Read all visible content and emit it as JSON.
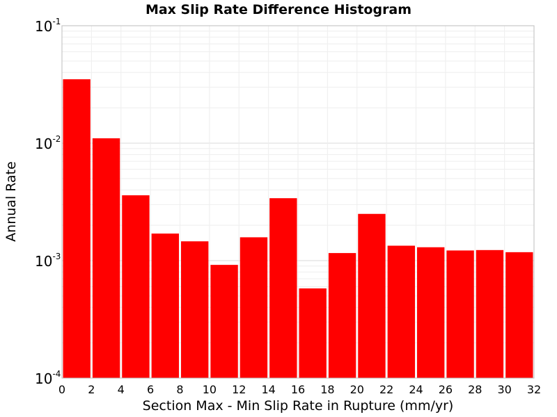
{
  "chart_data": {
    "type": "bar",
    "title": "Max Slip Rate Difference Histogram",
    "xlabel": "Section Max - Min Slip Rate in Rupture (mm/yr)",
    "ylabel": "Annual Rate",
    "xlim": [
      0,
      32
    ],
    "ylim": [
      0.0001,
      0.1
    ],
    "yscale": "log",
    "grid": true,
    "bar_color": "#ff0000",
    "bin_width": 2,
    "x_ticks": [
      "0",
      "2",
      "4",
      "6",
      "8",
      "10",
      "12",
      "14",
      "16",
      "18",
      "20",
      "22",
      "24",
      "26",
      "28",
      "30",
      "32"
    ],
    "y_ticks": [
      {
        "base": "10",
        "exp": "-1",
        "value": 0.1
      },
      {
        "base": "10",
        "exp": "-2",
        "value": 0.01
      },
      {
        "base": "10",
        "exp": "-3",
        "value": 0.001
      },
      {
        "base": "10",
        "exp": "-4",
        "value": 0.0001
      }
    ],
    "bins": [
      {
        "x_start": 0,
        "value": 0.035
      },
      {
        "x_start": 2,
        "value": 0.011
      },
      {
        "x_start": 4,
        "value": 0.0036
      },
      {
        "x_start": 6,
        "value": 0.0017
      },
      {
        "x_start": 8,
        "value": 0.00146
      },
      {
        "x_start": 10,
        "value": 0.00092
      },
      {
        "x_start": 12,
        "value": 0.00158
      },
      {
        "x_start": 14,
        "value": 0.0034
      },
      {
        "x_start": 16,
        "value": 0.00058
      },
      {
        "x_start": 18,
        "value": 0.00116
      },
      {
        "x_start": 20,
        "value": 0.0025
      },
      {
        "x_start": 22,
        "value": 0.00134
      },
      {
        "x_start": 24,
        "value": 0.0013
      },
      {
        "x_start": 26,
        "value": 0.00122
      },
      {
        "x_start": 28,
        "value": 0.00123
      },
      {
        "x_start": 30,
        "value": 0.00118
      }
    ]
  }
}
